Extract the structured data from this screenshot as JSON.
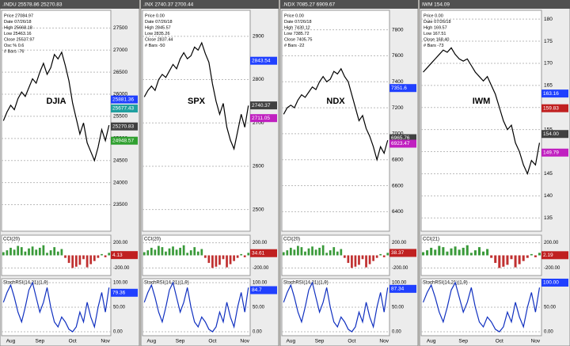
{
  "chart_data": [
    {
      "type": "line",
      "title": "DJIA",
      "header": ".INDU 25578.86 25270.83",
      "info": [
        "Price 27084.97",
        "Date 07/26/18",
        "High 25668.18",
        "Low 25463.16",
        "Close 25537.97",
        "Osc % 0.6",
        "# Bars -76"
      ],
      "categories": [
        null,
        null,
        "Aug",
        null,
        null,
        null,
        null,
        null,
        null,
        null,
        "Sep",
        null,
        null,
        null,
        null,
        null,
        null,
        null,
        null,
        "Oct",
        null,
        null,
        null,
        null,
        null,
        null,
        null,
        null,
        "Nov",
        null
      ],
      "values": [
        25400,
        25600,
        25750,
        25650,
        25900,
        26050,
        25950,
        26150,
        26350,
        26250,
        26500,
        26700,
        26450,
        26600,
        26900,
        26800,
        26950,
        26650,
        26300,
        25800,
        25450,
        25100,
        25350,
        24900,
        24700,
        24500,
        24800,
        25200,
        24950,
        25300
      ],
      "color": "#000000",
      "ylim": [
        22900,
        27900
      ],
      "yticks": [
        23500,
        24000,
        24500,
        25000,
        25500,
        26000,
        26500,
        27000,
        27500
      ],
      "tags": [
        {
          "value": 25881.36,
          "color": "#2040ff"
        },
        {
          "value": 25677.43,
          "color": "#20a0a0"
        },
        {
          "value": 25270.83,
          "color": "#404040"
        },
        {
          "value": 24948.57,
          "color": "#30a030"
        }
      ],
      "cci": {
        "label": "CCI(20)",
        "values": [
          50,
          80,
          120,
          90,
          150,
          130,
          60,
          110,
          140,
          90,
          120,
          160,
          40,
          80,
          130,
          60,
          100,
          -40,
          -120,
          -200,
          -180,
          -150,
          -60,
          -190,
          -140,
          -90,
          -40,
          20,
          -30,
          40
        ],
        "ylim": [
          -320,
          320
        ],
        "yticks": [
          {
            "value": 200,
            "label": "200.00"
          },
          {
            "value": -200,
            "label": "-200.00"
          }
        ],
        "tag": {
          "value": 4.13,
          "color": "#c02020"
        }
      },
      "stoch": {
        "label": "StochRSI(14,21)(1,9)",
        "values": [
          60,
          80,
          95,
          70,
          40,
          20,
          50,
          85,
          100,
          70,
          40,
          60,
          90,
          50,
          20,
          10,
          30,
          20,
          5,
          0,
          10,
          40,
          20,
          60,
          30,
          10,
          50,
          80,
          40,
          90
        ],
        "ylim": [
          -8,
          108
        ],
        "yticks": [
          {
            "value": 100,
            "label": "100.00"
          },
          {
            "value": 50,
            "label": "50.00"
          },
          {
            "value": 0,
            "label": "0.00"
          }
        ],
        "tag": {
          "value": 79.36,
          "color": "#2040ff"
        }
      }
    },
    {
      "type": "line",
      "title": "SPX",
      "header": ".INX 2740.37 2700.44",
      "info": [
        "Price 0.00",
        "Date 07/26/18",
        "High 2845.57",
        "Low 2835.26",
        "Close 2837.44",
        "# Bars -50"
      ],
      "categories": [
        null,
        null,
        "Aug",
        null,
        null,
        null,
        null,
        null,
        null,
        null,
        "Sep",
        null,
        null,
        null,
        null,
        null,
        null,
        null,
        null,
        "Oct",
        null,
        null,
        null,
        null,
        null,
        null,
        null,
        null,
        "Nov",
        null
      ],
      "values": [
        2760,
        2775,
        2785,
        2775,
        2800,
        2812,
        2805,
        2820,
        2835,
        2825,
        2848,
        2862,
        2848,
        2855,
        2875,
        2868,
        2885,
        2860,
        2840,
        2790,
        2750,
        2720,
        2745,
        2690,
        2660,
        2640,
        2680,
        2720,
        2690,
        2740
      ],
      "color": "#000000",
      "ylim": [
        2450,
        2960
      ],
      "yticks": [
        2500,
        2600,
        2700,
        2800,
        2900
      ],
      "tags": [
        {
          "value": 2843.54,
          "color": "#2040ff"
        },
        {
          "value": 2740.37,
          "color": "#404040"
        },
        {
          "value": 2711.05,
          "color": "#c020c0"
        }
      ],
      "cci": {
        "label": "CCI(20)",
        "values": [
          50,
          80,
          120,
          90,
          150,
          130,
          60,
          110,
          140,
          90,
          120,
          160,
          40,
          80,
          130,
          60,
          100,
          -40,
          -120,
          -200,
          -180,
          -150,
          -60,
          -190,
          -140,
          -90,
          -40,
          20,
          -30,
          40
        ],
        "ylim": [
          -320,
          320
        ],
        "yticks": [
          {
            "value": 200,
            "label": "200.00"
          },
          {
            "value": -200,
            "label": "-200.00"
          }
        ],
        "tag": {
          "value": 34.61,
          "color": "#c02020"
        }
      },
      "stoch": {
        "label": "StochRSI(14,21)(1,9)",
        "values": [
          60,
          80,
          95,
          70,
          40,
          20,
          50,
          85,
          100,
          70,
          40,
          60,
          90,
          50,
          20,
          10,
          30,
          20,
          5,
          0,
          10,
          40,
          20,
          60,
          30,
          10,
          50,
          80,
          40,
          90
        ],
        "ylim": [
          -8,
          108
        ],
        "yticks": [
          {
            "value": 100,
            "label": "100.00"
          },
          {
            "value": 50,
            "label": "50.00"
          },
          {
            "value": 0,
            "label": "0.00"
          }
        ],
        "tag": {
          "value": 84.7,
          "color": "#2040ff"
        }
      }
    },
    {
      "type": "line",
      "title": "NDX",
      "header": ".NDX 7085.27 6909.67",
      "info": [
        "Price 0.00",
        "Date 07/26/18",
        "High 7430.12",
        "Low 7385.72",
        "Close 7405.75",
        "# Bars -22"
      ],
      "categories": [
        null,
        null,
        "Aug",
        null,
        null,
        null,
        null,
        null,
        null,
        null,
        "Sep",
        null,
        null,
        null,
        null,
        null,
        null,
        null,
        null,
        "Oct",
        null,
        null,
        null,
        null,
        null,
        null,
        null,
        null,
        "Nov",
        null
      ],
      "values": [
        7150,
        7200,
        7220,
        7200,
        7260,
        7300,
        7280,
        7320,
        7360,
        7340,
        7400,
        7440,
        7400,
        7420,
        7480,
        7460,
        7500,
        7440,
        7400,
        7300,
        7200,
        7100,
        7140,
        7040,
        6980,
        6900,
        6800,
        6900,
        6850,
        6950
      ],
      "color": "#000000",
      "ylim": [
        6250,
        7950
      ],
      "yticks": [
        6400,
        6600,
        6800,
        7000,
        7200,
        7400,
        7600,
        7800
      ],
      "tags": [
        {
          "value": 7351.6,
          "color": "#2040ff"
        },
        {
          "value": 6965.76,
          "color": "#404040"
        },
        {
          "value": 6923.47,
          "color": "#c020c0"
        }
      ],
      "cci": {
        "label": "CCI(20)",
        "values": [
          50,
          80,
          120,
          90,
          150,
          130,
          60,
          110,
          140,
          90,
          120,
          160,
          40,
          80,
          130,
          60,
          100,
          -40,
          -120,
          -200,
          -180,
          -150,
          -60,
          -190,
          -140,
          -90,
          -40,
          20,
          -30,
          40
        ],
        "ylim": [
          -320,
          320
        ],
        "yticks": [
          {
            "value": 200,
            "label": "200.00"
          },
          {
            "value": -200,
            "label": "-200.00"
          }
        ],
        "tag": {
          "value": 38.37,
          "color": "#c02020"
        }
      },
      "stoch": {
        "label": "StochRSI(14,21)(1,9)",
        "values": [
          60,
          80,
          95,
          70,
          40,
          20,
          50,
          85,
          100,
          70,
          40,
          60,
          90,
          50,
          20,
          10,
          30,
          20,
          5,
          0,
          10,
          40,
          20,
          60,
          30,
          10,
          50,
          80,
          40,
          90
        ],
        "ylim": [
          -8,
          108
        ],
        "yticks": [
          {
            "value": 100,
            "label": "100.00"
          },
          {
            "value": 50,
            "label": "50.00"
          },
          {
            "value": 0,
            "label": "0.00"
          }
        ],
        "tag": {
          "value": 87.34,
          "color": "#2040ff"
        }
      }
    },
    {
      "type": "line",
      "title": "IWM",
      "header": "IWM 154.09",
      "info": [
        "Price 0.00",
        "Date 07/26/18",
        "High 169.57",
        "Low 167.51",
        "Close 168.40",
        "# Bars -73"
      ],
      "categories": [
        null,
        null,
        "Aug",
        null,
        null,
        null,
        null,
        null,
        null,
        null,
        "Sep",
        null,
        null,
        null,
        null,
        null,
        null,
        null,
        null,
        "Oct",
        null,
        null,
        null,
        null,
        null,
        null,
        null,
        null,
        "Nov",
        null
      ],
      "values": [
        168,
        169,
        170,
        171,
        172,
        173,
        172.5,
        173.5,
        172,
        171,
        170.5,
        171,
        169.5,
        168,
        167,
        166,
        167,
        165,
        163,
        160,
        157,
        155,
        156,
        152,
        150,
        147,
        145,
        148,
        147,
        152
      ],
      "color": "#000000",
      "ylim": [
        132,
        182
      ],
      "yticks": [
        135,
        140,
        145,
        150,
        155,
        160,
        165,
        170,
        175,
        180
      ],
      "tags": [
        {
          "value": 163.16,
          "color": "#2040ff"
        },
        {
          "value": 159.83,
          "color": "#c02020"
        },
        {
          "value": 154,
          "label": "154.00",
          "color": "#404040"
        },
        {
          "value": 149.79,
          "color": "#c020c0"
        }
      ],
      "cci": {
        "label": "CCI(21)",
        "values": [
          50,
          80,
          120,
          90,
          150,
          130,
          60,
          110,
          140,
          90,
          120,
          160,
          40,
          80,
          130,
          60,
          100,
          -40,
          -120,
          -200,
          -180,
          -150,
          -60,
          -190,
          -140,
          -90,
          -40,
          20,
          -30,
          40
        ],
        "ylim": [
          -320,
          320
        ],
        "yticks": [
          {
            "value": 200,
            "label": "200.00"
          },
          {
            "value": -200,
            "label": "-200.00"
          }
        ],
        "tag": {
          "value": 2.19,
          "color": "#c02020"
        }
      },
      "stoch": {
        "label": "StochRSI(14,21)(1,9)",
        "values": [
          60,
          80,
          95,
          70,
          40,
          20,
          50,
          85,
          100,
          70,
          40,
          60,
          90,
          50,
          20,
          10,
          30,
          20,
          5,
          0,
          10,
          40,
          20,
          60,
          30,
          10,
          50,
          80,
          40,
          90
        ],
        "ylim": [
          -8,
          108
        ],
        "yticks": [
          {
            "value": 100,
            "label": "100.00"
          },
          {
            "value": 50,
            "label": "50.00"
          },
          {
            "value": 0,
            "label": "0.00"
          }
        ],
        "tag": {
          "value": 100,
          "label": "100.00",
          "color": "#2040ff"
        }
      }
    }
  ]
}
